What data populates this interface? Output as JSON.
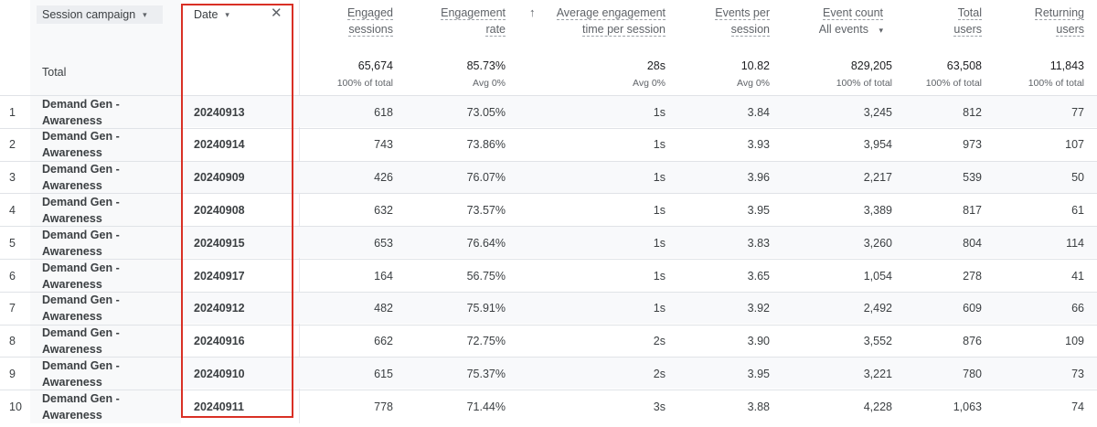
{
  "dimensions": {
    "campaign_label": "Session campaign",
    "date_label": "Date"
  },
  "icons": {
    "caret": "▾",
    "close": "✕",
    "sort_up": "↑"
  },
  "headers": {
    "engaged": [
      "Engaged",
      "sessions"
    ],
    "engagement_rate": [
      "Engagement",
      "rate"
    ],
    "avg_time": [
      "Average engagement",
      "time per session"
    ],
    "events_per": [
      "Events per",
      "session"
    ],
    "event_count": [
      "Event count"
    ],
    "event_count_filter": "All events",
    "total_users": [
      "Total",
      "users"
    ],
    "returning": [
      "Returning",
      "users"
    ]
  },
  "totals": {
    "label": "Total",
    "engaged": "65,674",
    "engaged_sub": "100% of total",
    "rate": "85.73%",
    "rate_sub": "Avg 0%",
    "avg_time": "28s",
    "avg_time_sub": "Avg 0%",
    "events_per": "10.82",
    "events_per_sub": "Avg 0%",
    "event_count": "829,205",
    "event_count_sub": "100% of total",
    "total_users": "63,508",
    "total_users_sub": "100% of total",
    "returning": "11,843",
    "returning_sub": "100% of total"
  },
  "rows": [
    {
      "idx": "1",
      "campaign": "Demand Gen - Awareness",
      "date": "20240913",
      "engaged": "618",
      "rate": "73.05%",
      "avg_time": "1s",
      "events_per": "3.84",
      "event_count": "3,245",
      "total_users": "812",
      "returning": "77"
    },
    {
      "idx": "2",
      "campaign": "Demand Gen - Awareness",
      "date": "20240914",
      "engaged": "743",
      "rate": "73.86%",
      "avg_time": "1s",
      "events_per": "3.93",
      "event_count": "3,954",
      "total_users": "973",
      "returning": "107"
    },
    {
      "idx": "3",
      "campaign": "Demand Gen - Awareness",
      "date": "20240909",
      "engaged": "426",
      "rate": "76.07%",
      "avg_time": "1s",
      "events_per": "3.96",
      "event_count": "2,217",
      "total_users": "539",
      "returning": "50"
    },
    {
      "idx": "4",
      "campaign": "Demand Gen - Awareness",
      "date": "20240908",
      "engaged": "632",
      "rate": "73.57%",
      "avg_time": "1s",
      "events_per": "3.95",
      "event_count": "3,389",
      "total_users": "817",
      "returning": "61"
    },
    {
      "idx": "5",
      "campaign": "Demand Gen - Awareness",
      "date": "20240915",
      "engaged": "653",
      "rate": "76.64%",
      "avg_time": "1s",
      "events_per": "3.83",
      "event_count": "3,260",
      "total_users": "804",
      "returning": "114"
    },
    {
      "idx": "6",
      "campaign": "Demand Gen - Awareness",
      "date": "20240917",
      "engaged": "164",
      "rate": "56.75%",
      "avg_time": "1s",
      "events_per": "3.65",
      "event_count": "1,054",
      "total_users": "278",
      "returning": "41"
    },
    {
      "idx": "7",
      "campaign": "Demand Gen - Awareness",
      "date": "20240912",
      "engaged": "482",
      "rate": "75.91%",
      "avg_time": "1s",
      "events_per": "3.92",
      "event_count": "2,492",
      "total_users": "609",
      "returning": "66"
    },
    {
      "idx": "8",
      "campaign": "Demand Gen - Awareness",
      "date": "20240916",
      "engaged": "662",
      "rate": "72.75%",
      "avg_time": "2s",
      "events_per": "3.90",
      "event_count": "3,552",
      "total_users": "876",
      "returning": "109"
    },
    {
      "idx": "9",
      "campaign": "Demand Gen - Awareness",
      "date": "20240910",
      "engaged": "615",
      "rate": "75.37%",
      "avg_time": "2s",
      "events_per": "3.95",
      "event_count": "3,221",
      "total_users": "780",
      "returning": "73"
    },
    {
      "idx": "10",
      "campaign": "Demand Gen - Awareness",
      "date": "20240911",
      "engaged": "778",
      "rate": "71.44%",
      "avg_time": "3s",
      "events_per": "3.88",
      "event_count": "4,228",
      "total_users": "1,063",
      "returning": "74"
    }
  ]
}
